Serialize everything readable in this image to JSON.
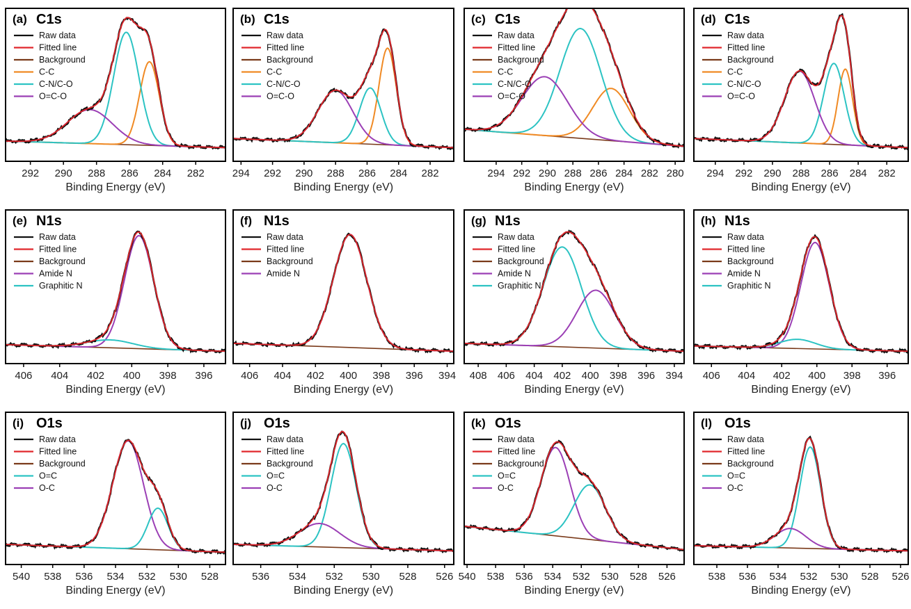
{
  "figure": {
    "series_colors": {
      "Raw data": "#111111",
      "Fitted line": "#e0262b",
      "Background": "#7a3a1a",
      "C-C": "#f08a24",
      "C-N/C-O": "#2cc3c3",
      "O=C-O": "#9b3fb5",
      "Amide N": "#9b3fb5",
      "Graphitic N": "#2cc3c3",
      "O=C": "#2cc3c3",
      "O-C": "#9b3fb5"
    }
  },
  "chart_data": [
    {
      "type": "line",
      "letter": "(a)",
      "title": "C1s",
      "xlabel": "Binding Energy (eV)",
      "xlim": [
        293.5,
        280.2
      ],
      "ylim": [
        0,
        1
      ],
      "xticks": [
        292,
        290,
        288,
        286,
        284,
        282
      ],
      "legend": [
        "Raw data",
        "Fitted line",
        "Background",
        "C-C",
        "C-N/C-O",
        "O=C-O"
      ],
      "background": [
        [
          293.5,
          0.08
        ],
        [
          280.2,
          0.03
        ]
      ],
      "peaks": [
        {
          "name": "C-C",
          "center": 284.8,
          "height": 0.64,
          "fwhm": 1.4
        },
        {
          "name": "C-N/C-O",
          "center": 286.2,
          "height": 0.86,
          "fwhm": 1.8
        },
        {
          "name": "O=C-O",
          "center": 288.4,
          "height": 0.26,
          "fwhm": 3.2
        }
      ]
    },
    {
      "type": "line",
      "letter": "(b)",
      "title": "C1s",
      "xlabel": "Binding Energy (eV)",
      "xlim": [
        294.5,
        280.5
      ],
      "ylim": [
        0,
        1
      ],
      "xticks": [
        294,
        292,
        290,
        288,
        286,
        284,
        282
      ],
      "legend": [
        "Raw data",
        "Fitted line",
        "Background",
        "C-C",
        "C-N/C-O",
        "O=C-O"
      ],
      "background": [
        [
          294.5,
          0.1
        ],
        [
          280.5,
          0.03
        ]
      ],
      "peaks": [
        {
          "name": "C-C",
          "center": 284.7,
          "height": 0.74,
          "fwhm": 1.3
        },
        {
          "name": "C-N/C-O",
          "center": 285.8,
          "height": 0.43,
          "fwhm": 1.6
        },
        {
          "name": "O=C-O",
          "center": 288.0,
          "height": 0.4,
          "fwhm": 2.6
        }
      ]
    },
    {
      "type": "line",
      "letter": "(c)",
      "title": "C1s",
      "xlabel": "Binding Energy (eV)",
      "xlim": [
        296.5,
        279.3
      ],
      "ylim": [
        0,
        1
      ],
      "xticks": [
        294,
        292,
        290,
        288,
        286,
        284,
        282,
        280
      ],
      "legend": [
        "Raw data",
        "Fitted line",
        "Background",
        "C-C",
        "C-N/C-O",
        "O=C-O"
      ],
      "background": [
        [
          296.5,
          0.17
        ],
        [
          279.3,
          0.04
        ]
      ],
      "peaks": [
        {
          "name": "C-C",
          "center": 285.0,
          "height": 0.4,
          "fwhm": 3.4
        },
        {
          "name": "C-N/C-O",
          "center": 287.4,
          "height": 0.84,
          "fwhm": 3.8
        },
        {
          "name": "O=C-O",
          "center": 290.2,
          "height": 0.45,
          "fwhm": 4.2
        }
      ]
    },
    {
      "type": "line",
      "letter": "(d)",
      "title": "C1s",
      "xlabel": "Binding Energy (eV)",
      "xlim": [
        295.5,
        280.5
      ],
      "ylim": [
        0,
        1
      ],
      "xticks": [
        294,
        292,
        290,
        288,
        286,
        284,
        282
      ],
      "legend": [
        "Raw data",
        "Fitted line",
        "Background",
        "C-C",
        "C-N/C-O",
        "O=C-O"
      ],
      "background": [
        [
          295.5,
          0.1
        ],
        [
          280.5,
          0.03
        ]
      ],
      "peaks": [
        {
          "name": "C-C",
          "center": 284.9,
          "height": 0.58,
          "fwhm": 1.2
        },
        {
          "name": "C-N/C-O",
          "center": 285.7,
          "height": 0.62,
          "fwhm": 1.7
        },
        {
          "name": "O=C-O",
          "center": 288.1,
          "height": 0.55,
          "fwhm": 2.5
        }
      ]
    },
    {
      "type": "line",
      "letter": "(e)",
      "title": "N1s",
      "xlabel": "Binding Energy (eV)",
      "xlim": [
        407,
        394.8
      ],
      "ylim": [
        0,
        1
      ],
      "xticks": [
        406,
        404,
        402,
        400,
        398,
        396
      ],
      "legend": [
        "Raw data",
        "Fitted line",
        "Background",
        "Amide N",
        "Graphitic N"
      ],
      "background": [
        [
          407,
          0.07
        ],
        [
          394.8,
          0.02
        ]
      ],
      "peaks": [
        {
          "name": "Amide N",
          "center": 399.6,
          "height": 0.86,
          "fwhm": 1.9
        },
        {
          "name": "Graphitic N",
          "center": 401.2,
          "height": 0.06,
          "fwhm": 3.0
        }
      ]
    },
    {
      "type": "line",
      "letter": "(f)",
      "title": "N1s",
      "xlabel": "Binding Energy (eV)",
      "xlim": [
        407,
        393.6
      ],
      "ylim": [
        0,
        1
      ],
      "xticks": [
        406,
        404,
        402,
        400,
        398,
        396,
        394
      ],
      "legend": [
        "Raw data",
        "Fitted line",
        "Background",
        "Amide N"
      ],
      "background": [
        [
          407,
          0.08
        ],
        [
          393.6,
          0.02
        ]
      ],
      "peaks": [
        {
          "name": "Amide N",
          "center": 399.9,
          "height": 0.86,
          "fwhm": 2.4
        }
      ]
    },
    {
      "type": "line",
      "letter": "(g)",
      "title": "N1s",
      "xlabel": "Binding Energy (eV)",
      "xlim": [
        409,
        393.3
      ],
      "ylim": [
        0,
        1
      ],
      "xticks": [
        408,
        406,
        404,
        402,
        400,
        398,
        396,
        394
      ],
      "legend": [
        "Raw data",
        "Fitted line",
        "Background",
        "Amide N",
        "Graphitic N"
      ],
      "background": [
        [
          409,
          0.08
        ],
        [
          393.3,
          0.02
        ]
      ],
      "peaks": [
        {
          "name": "Graphitic N",
          "center": 402.0,
          "height": 0.76,
          "fwhm": 3.2
        },
        {
          "name": "Amide N",
          "center": 399.6,
          "height": 0.44,
          "fwhm": 3.2
        }
      ]
    },
    {
      "type": "line",
      "letter": "(h)",
      "title": "N1s",
      "xlabel": "Binding Energy (eV)",
      "xlim": [
        407,
        394.8
      ],
      "ylim": [
        0,
        1
      ],
      "xticks": [
        406,
        404,
        402,
        400,
        398,
        396
      ],
      "legend": [
        "Raw data",
        "Fitted line",
        "Background",
        "Amide N",
        "Graphitic N"
      ],
      "background": [
        [
          407,
          0.06
        ],
        [
          394.8,
          0.02
        ]
      ],
      "peaks": [
        {
          "name": "Amide N",
          "center": 400.1,
          "height": 0.81,
          "fwhm": 1.9
        },
        {
          "name": "Graphitic N",
          "center": 401.1,
          "height": 0.07,
          "fwhm": 2.4
        }
      ]
    },
    {
      "type": "line",
      "letter": "(i)",
      "title": "O1s",
      "xlabel": "Binding Energy (eV)",
      "xlim": [
        541,
        527
      ],
      "ylim": [
        0,
        1
      ],
      "xticks": [
        540,
        538,
        536,
        534,
        532,
        530,
        528
      ],
      "legend": [
        "Raw data",
        "Fitted line",
        "Background",
        "O=C",
        "O-C"
      ],
      "background": [
        [
          541,
          0.08
        ],
        [
          527,
          0.02
        ]
      ],
      "peaks": [
        {
          "name": "O-C",
          "center": 533.2,
          "height": 0.83,
          "fwhm": 2.3
        },
        {
          "name": "O=C",
          "center": 531.3,
          "height": 0.32,
          "fwhm": 1.5
        }
      ]
    },
    {
      "type": "line",
      "letter": "(j)",
      "title": "O1s",
      "xlabel": "Binding Energy (eV)",
      "xlim": [
        537.5,
        525.5
      ],
      "ylim": [
        0,
        1
      ],
      "xticks": [
        536,
        534,
        532,
        530,
        528,
        526
      ],
      "legend": [
        "Raw data",
        "Fitted line",
        "Background",
        "O=C",
        "O-C"
      ],
      "background": [
        [
          537.5,
          0.08
        ],
        [
          525.5,
          0.03
        ]
      ],
      "peaks": [
        {
          "name": "O=C",
          "center": 531.5,
          "height": 0.8,
          "fwhm": 1.6
        },
        {
          "name": "O-C",
          "center": 532.8,
          "height": 0.18,
          "fwhm": 2.6
        }
      ]
    },
    {
      "type": "line",
      "letter": "(k)",
      "title": "O1s",
      "xlabel": "Binding Energy (eV)",
      "xlim": [
        540.2,
        524.8
      ],
      "ylim": [
        0,
        1
      ],
      "xticks": [
        540,
        538,
        536,
        534,
        532,
        530,
        528,
        526
      ],
      "legend": [
        "Raw data",
        "Fitted line",
        "Background",
        "O=C",
        "O-C"
      ],
      "background": [
        [
          540.2,
          0.22
        ],
        [
          524.8,
          0.04
        ]
      ],
      "peaks": [
        {
          "name": "O-C",
          "center": 533.8,
          "height": 0.68,
          "fwhm": 2.4
        },
        {
          "name": "O=C",
          "center": 531.4,
          "height": 0.42,
          "fwhm": 2.6
        }
      ]
    },
    {
      "type": "line",
      "letter": "(l)",
      "title": "O1s",
      "xlabel": "Binding Energy (eV)",
      "xlim": [
        539.5,
        525.5
      ],
      "ylim": [
        0,
        1
      ],
      "xticks": [
        538,
        536,
        534,
        532,
        530,
        528,
        526
      ],
      "legend": [
        "Raw data",
        "Fitted line",
        "Background",
        "O=C",
        "O-C"
      ],
      "background": [
        [
          539.5,
          0.07
        ],
        [
          525.5,
          0.03
        ]
      ],
      "peaks": [
        {
          "name": "O=C",
          "center": 531.9,
          "height": 0.78,
          "fwhm": 1.6
        },
        {
          "name": "O-C",
          "center": 533.2,
          "height": 0.15,
          "fwhm": 2.4
        }
      ]
    }
  ]
}
